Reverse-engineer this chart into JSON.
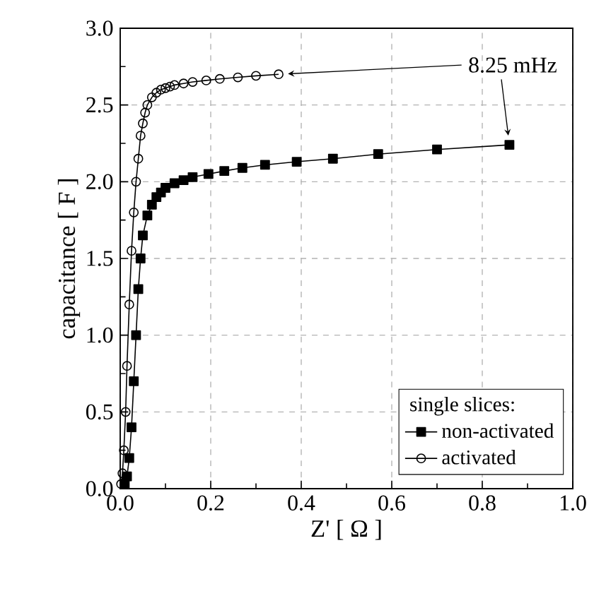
{
  "chart_data": {
    "type": "line",
    "xlabel": "Z' [ Ω ]",
    "ylabel": "capacitance [ F ]",
    "legend_title": "single slices:",
    "annotations": [
      "8.25 mHz"
    ],
    "xlim": [
      0,
      1.0
    ],
    "ylim": [
      0,
      3.0
    ],
    "xticks": [
      {
        "value": 0,
        "label": "0.0"
      },
      {
        "value": 0.2,
        "label": "0.2"
      },
      {
        "value": 0.4,
        "label": "0.4"
      },
      {
        "value": 0.6,
        "label": "0.6"
      },
      {
        "value": 0.8,
        "label": "0.8"
      },
      {
        "value": 1.0,
        "label": "1.0"
      }
    ],
    "yticks": [
      {
        "value": 0,
        "label": "0.0"
      },
      {
        "value": 0.5,
        "label": "0.5"
      },
      {
        "value": 1.0,
        "label": "1.0"
      },
      {
        "value": 1.5,
        "label": "1.5"
      },
      {
        "value": 2.0,
        "label": "2.0"
      },
      {
        "value": 2.5,
        "label": "2.5"
      },
      {
        "value": 3.0,
        "label": "3.0"
      }
    ],
    "grid": true,
    "legend": "bottom right",
    "line_style": "solid",
    "series": [
      {
        "name": "non-activated",
        "color": "#000000",
        "marker": "square",
        "x": [
          0.01,
          0.015,
          0.02,
          0.025,
          0.03,
          0.035,
          0.04,
          0.045,
          0.05,
          0.06,
          0.07,
          0.08,
          0.09,
          0.1,
          0.12,
          0.14,
          0.16,
          0.195,
          0.23,
          0.27,
          0.32,
          0.39,
          0.47,
          0.57,
          0.7,
          0.86
        ],
        "values": [
          0.03,
          0.08,
          0.2,
          0.4,
          0.7,
          1.0,
          1.3,
          1.5,
          1.65,
          1.78,
          1.85,
          1.9,
          1.93,
          1.96,
          1.99,
          2.01,
          2.03,
          2.05,
          2.07,
          2.09,
          2.11,
          2.13,
          2.15,
          2.18,
          2.21,
          2.24
        ]
      },
      {
        "name": "activated",
        "color": "#000000",
        "marker": "circle",
        "x": [
          0.002,
          0.005,
          0.008,
          0.012,
          0.015,
          0.02,
          0.025,
          0.03,
          0.035,
          0.04,
          0.045,
          0.05,
          0.055,
          0.06,
          0.07,
          0.08,
          0.09,
          0.1,
          0.11,
          0.12,
          0.14,
          0.16,
          0.19,
          0.22,
          0.26,
          0.3,
          0.35
        ],
        "values": [
          0.03,
          0.1,
          0.25,
          0.5,
          0.8,
          1.2,
          1.55,
          1.8,
          2.0,
          2.15,
          2.3,
          2.38,
          2.45,
          2.5,
          2.55,
          2.58,
          2.6,
          2.61,
          2.62,
          2.63,
          2.64,
          2.65,
          2.66,
          2.67,
          2.68,
          2.69,
          2.7
        ]
      }
    ]
  }
}
